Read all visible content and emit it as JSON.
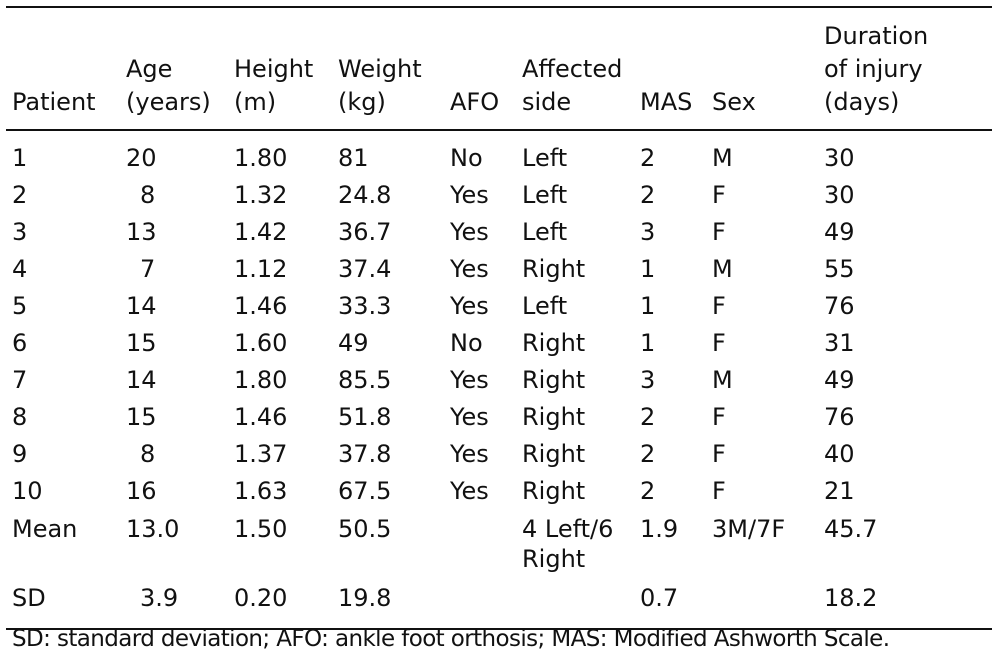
{
  "table": {
    "headers": [
      [
        "Patient"
      ],
      [
        "Age",
        "(years)"
      ],
      [
        "Height",
        "(m)"
      ],
      [
        "Weight",
        "(kg)"
      ],
      [
        "AFO"
      ],
      [
        "Affected",
        "side"
      ],
      [
        "MAS"
      ],
      [
        "Sex"
      ],
      [
        "Duration",
        "of injury",
        "(days)"
      ]
    ],
    "rows": [
      [
        "1",
        "20",
        "1.80",
        "81",
        "No",
        "Left",
        "2",
        "M",
        "30"
      ],
      [
        "2",
        "8",
        "1.32",
        "24.8",
        "Yes",
        "Left",
        "2",
        "F",
        "30"
      ],
      [
        "3",
        "13",
        "1.42",
        "36.7",
        "Yes",
        "Left",
        "3",
        "F",
        "49"
      ],
      [
        "4",
        "7",
        "1.12",
        "37.4",
        "Yes",
        "Right",
        "1",
        "M",
        "55"
      ],
      [
        "5",
        "14",
        "1.46",
        "33.3",
        "Yes",
        "Left",
        "1",
        "F",
        "76"
      ],
      [
        "6",
        "15",
        "1.60",
        "49",
        "No",
        "Right",
        "1",
        "F",
        "31"
      ],
      [
        "7",
        "14",
        "1.80",
        "85.5",
        "Yes",
        "Right",
        "3",
        "M",
        "49"
      ],
      [
        "8",
        "15",
        "1.46",
        "51.8",
        "Yes",
        "Right",
        "2",
        "F",
        "76"
      ],
      [
        "9",
        "8",
        "1.37",
        "37.8",
        "Yes",
        "Right",
        "2",
        "F",
        "40"
      ],
      [
        "10",
        "16",
        "1.63",
        "67.5",
        "Yes",
        "Right",
        "2",
        "F",
        "21"
      ]
    ],
    "mean": [
      "Mean",
      "13.0",
      "1.50",
      "50.5",
      "",
      "4 Left/6 Right",
      "1.9",
      "3M/7F",
      "45.7"
    ],
    "sd": [
      "SD",
      "3.9",
      "0.20",
      "19.8",
      "",
      "",
      "0.7",
      "",
      "18.2"
    ]
  },
  "footnote": "SD: standard deviation; AFO: ankle foot orthosis; MAS: Modified Ashworth Scale."
}
